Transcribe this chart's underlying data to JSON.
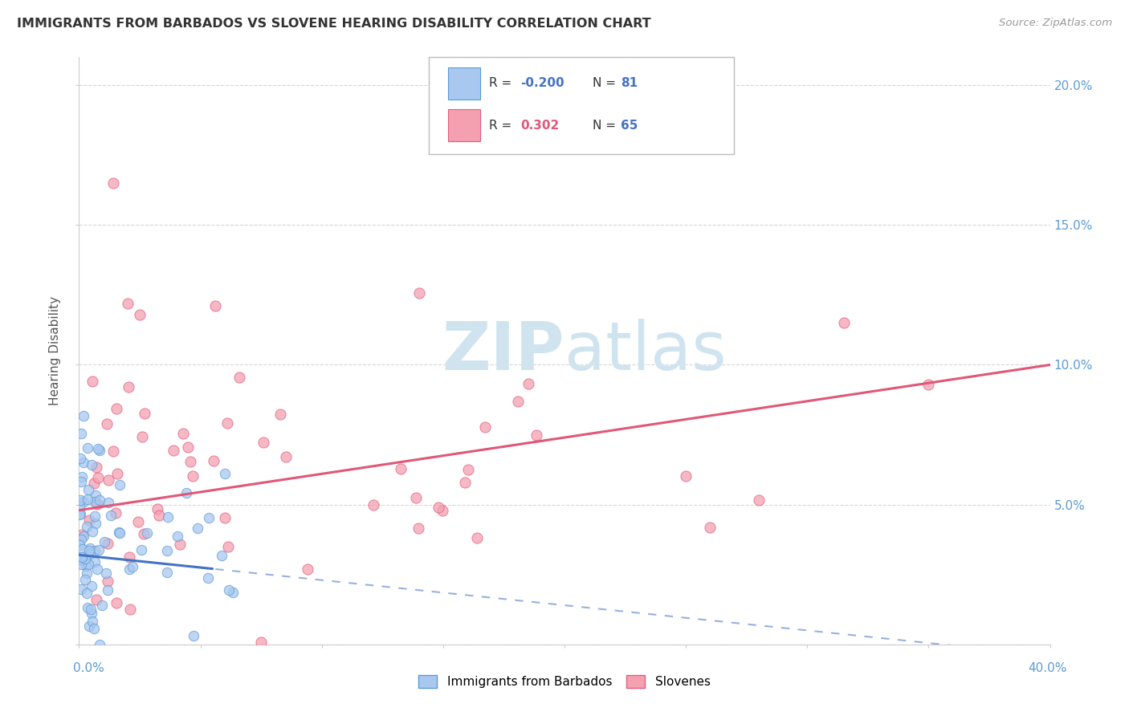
{
  "title": "IMMIGRANTS FROM BARBADOS VS SLOVENE HEARING DISABILITY CORRELATION CHART",
  "source": "Source: ZipAtlas.com",
  "ylabel": "Hearing Disability",
  "xlim": [
    0.0,
    0.4
  ],
  "ylim": [
    0.0,
    0.21
  ],
  "barbados_color": "#a8c8f0",
  "barbados_edge_color": "#5b9bd5",
  "slovene_color": "#f4a0b0",
  "slovene_edge_color": "#e06080",
  "barbados_line_color": "#4472c4",
  "slovene_line_color": "#e05878",
  "grid_color": "#cccccc",
  "axis_label_color": "#5b9bd5",
  "title_color": "#333333",
  "source_color": "#999999",
  "watermark_color": "#d0e4f0",
  "legend_r1_color": "#4472c4",
  "legend_n1_color": "#4472c4",
  "legend_r2_color": "#e05878",
  "legend_n2_color": "#4472c4"
}
